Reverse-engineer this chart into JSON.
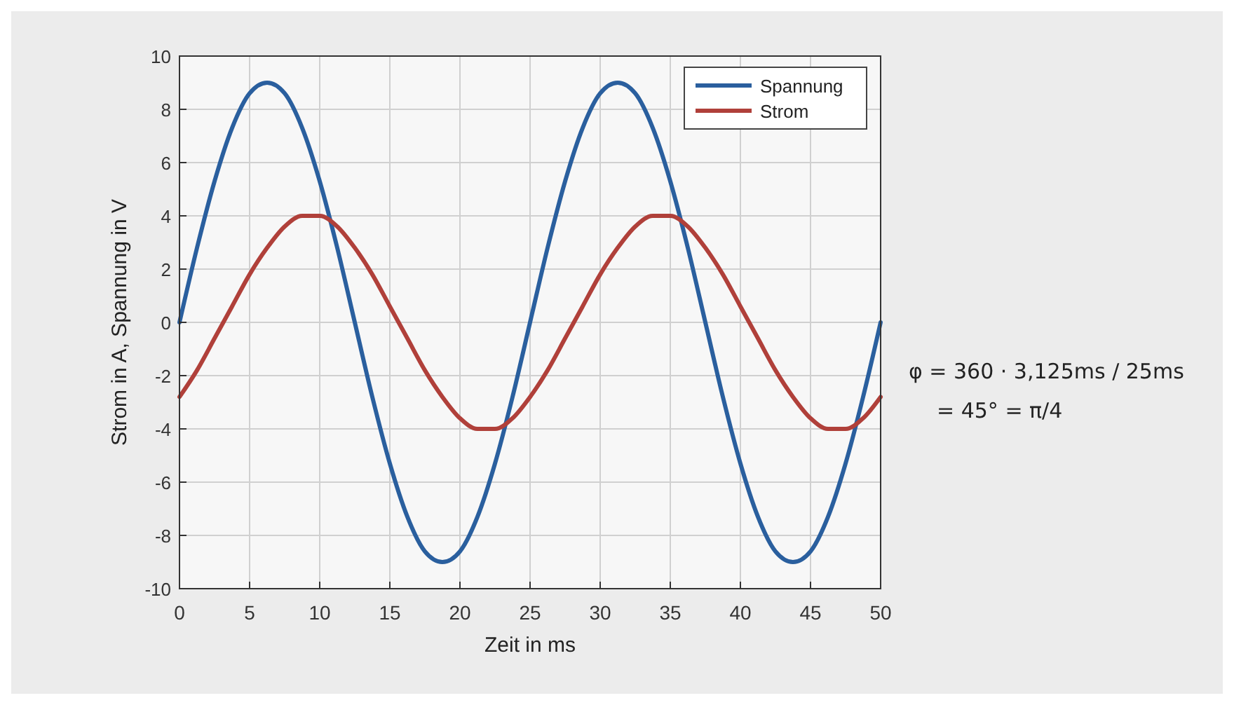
{
  "chart_data": {
    "type": "line",
    "xlabel": "Zeit in ms",
    "ylabel": "Strom in A, Spannung in V",
    "x": [
      0,
      1.25,
      2.5,
      3.75,
      5,
      6.25,
      7.5,
      8.75,
      10,
      11.25,
      12.5,
      13.75,
      15,
      16.25,
      17.5,
      18.75,
      20,
      21.25,
      22.5,
      23.75,
      25,
      26.25,
      27.5,
      28.75,
      30,
      31.25,
      32.5,
      33.75,
      35,
      36.25,
      37.5,
      38.75,
      40,
      41.25,
      42.5,
      43.75,
      45,
      46.25,
      47.5,
      48.75,
      50
    ],
    "series": [
      {
        "name": "Spannung",
        "color": "#2a5f9e",
        "values": [
          0,
          2.8,
          5.3,
          7.3,
          8.6,
          9,
          8.6,
          7.3,
          5.3,
          2.8,
          0,
          -2.8,
          -5.3,
          -7.3,
          -8.6,
          -9,
          -8.6,
          -7.3,
          -5.3,
          -2.8,
          0,
          2.8,
          5.3,
          7.3,
          8.6,
          9,
          8.6,
          7.3,
          5.3,
          2.8,
          0,
          -2.8,
          -5.3,
          -7.3,
          -8.6,
          -9,
          -8.6,
          -7.3,
          -5.3,
          -2.8,
          0
        ]
      },
      {
        "name": "Strom",
        "color": "#b0403a",
        "values": [
          -2.8,
          -1.8,
          -0.6,
          0.6,
          1.8,
          2.8,
          3.6,
          4,
          4,
          3.6,
          2.8,
          1.8,
          0.6,
          -0.6,
          -1.8,
          -2.8,
          -3.6,
          -4,
          -4,
          -3.6,
          -2.8,
          -1.8,
          -0.6,
          0.6,
          1.8,
          2.8,
          3.6,
          4,
          4,
          3.6,
          2.8,
          1.8,
          0.6,
          -0.6,
          -1.8,
          -2.8,
          -3.6,
          -4,
          -4,
          -3.6,
          -2.8
        ]
      }
    ],
    "xlim": [
      0,
      50
    ],
    "xticks": [
      0,
      5,
      10,
      15,
      20,
      25,
      30,
      35,
      40,
      45,
      50
    ],
    "ylim": [
      -10,
      10
    ],
    "yticks": [
      -10,
      -8,
      -6,
      -4,
      -2,
      0,
      2,
      4,
      6,
      8,
      10
    ],
    "grid": true,
    "legend": "top right",
    "marker": "none",
    "line_style": "solid",
    "annotations": [
      "φ = 360 · 3,125ms / 25ms",
      "= 45° = π/4"
    ]
  }
}
